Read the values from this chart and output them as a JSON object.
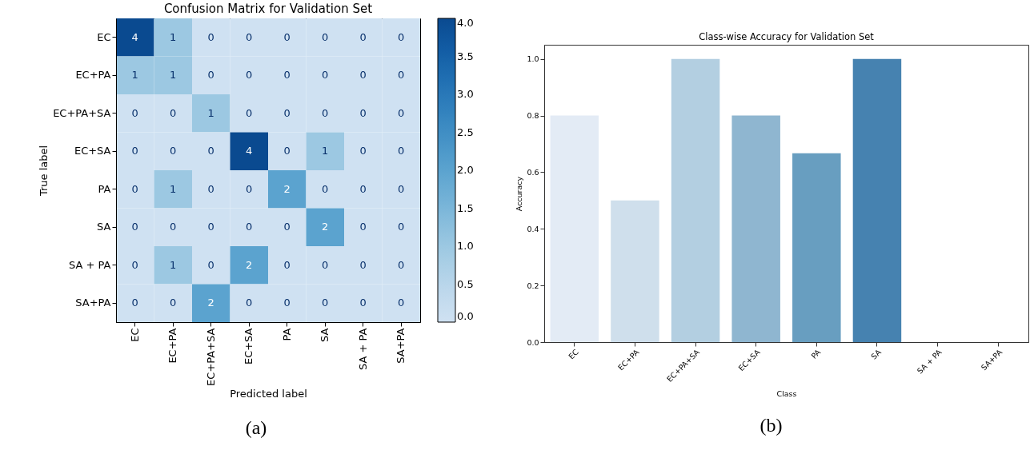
{
  "chart_data": [
    {
      "type": "heatmap",
      "title": "Confusion Matrix for Validation Set",
      "xlabel": "Predicted label",
      "ylabel": "True label",
      "categories": [
        "EC",
        "EC+PA",
        "EC+PA+SA",
        "EC+SA",
        "PA",
        "SA",
        "SA + PA",
        "SA+PA"
      ],
      "y_categories": [
        "EC",
        "EC+PA",
        "EC+PA+SA",
        "EC+SA",
        "PA",
        "SA",
        "SA + PA",
        "SA+PA"
      ],
      "cells": [
        [
          4,
          1,
          0,
          0,
          0,
          0,
          0,
          0
        ],
        [
          1,
          1,
          0,
          0,
          0,
          0,
          0,
          0
        ],
        [
          0,
          0,
          1,
          0,
          0,
          0,
          0,
          0
        ],
        [
          0,
          0,
          0,
          4,
          0,
          1,
          0,
          0
        ],
        [
          0,
          1,
          0,
          0,
          2,
          0,
          0,
          0
        ],
        [
          0,
          0,
          0,
          0,
          0,
          2,
          0,
          0
        ],
        [
          0,
          1,
          0,
          2,
          0,
          0,
          0,
          0
        ],
        [
          0,
          0,
          2,
          0,
          0,
          0,
          0,
          0
        ]
      ],
      "clim": [
        0,
        4
      ],
      "cticks": [
        {
          "value": 0,
          "label": "0.0"
        },
        {
          "value": 0.5,
          "label": "0.5"
        },
        {
          "value": 1,
          "label": "1.0"
        },
        {
          "value": 1.5,
          "label": "1.5"
        },
        {
          "value": 2,
          "label": "2.0"
        },
        {
          "value": 2.5,
          "label": "2.5"
        },
        {
          "value": 3,
          "label": "3.0"
        },
        {
          "value": 3.5,
          "label": "3.5"
        },
        {
          "value": 4,
          "label": "4.0"
        }
      ],
      "data_labels": true,
      "grid": false,
      "annotations": [
        "(a)"
      ]
    },
    {
      "type": "bar",
      "title": "Class-wise Accuracy for Validation Set",
      "xlabel": "Class",
      "ylabel": "Accuracy",
      "categories": [
        "EC",
        "EC+PA",
        "EC+PA+SA",
        "EC+SA",
        "PA",
        "SA",
        "SA + PA",
        "SA+PA"
      ],
      "values": [
        0.8,
        0.5,
        1.0,
        0.8,
        0.667,
        1.0,
        0,
        0
      ],
      "colors": [
        "#e3ebf5",
        "#cfdfec",
        "#b3cfe1",
        "#8fb6d0",
        "#689ec0",
        "#4682b0",
        "#2f6fa5",
        "#1f5a90"
      ],
      "ylim": [
        0,
        1.05
      ],
      "yticks": [
        {
          "value": 0,
          "label": "0.0"
        },
        {
          "value": 0.2,
          "label": "0.2"
        },
        {
          "value": 0.4,
          "label": "0.4"
        },
        {
          "value": 0.6,
          "label": "0.6"
        },
        {
          "value": 0.8,
          "label": "0.8"
        },
        {
          "value": 1,
          "label": "1.0"
        }
      ],
      "grid": false,
      "annotations": [
        "(b)"
      ]
    }
  ]
}
